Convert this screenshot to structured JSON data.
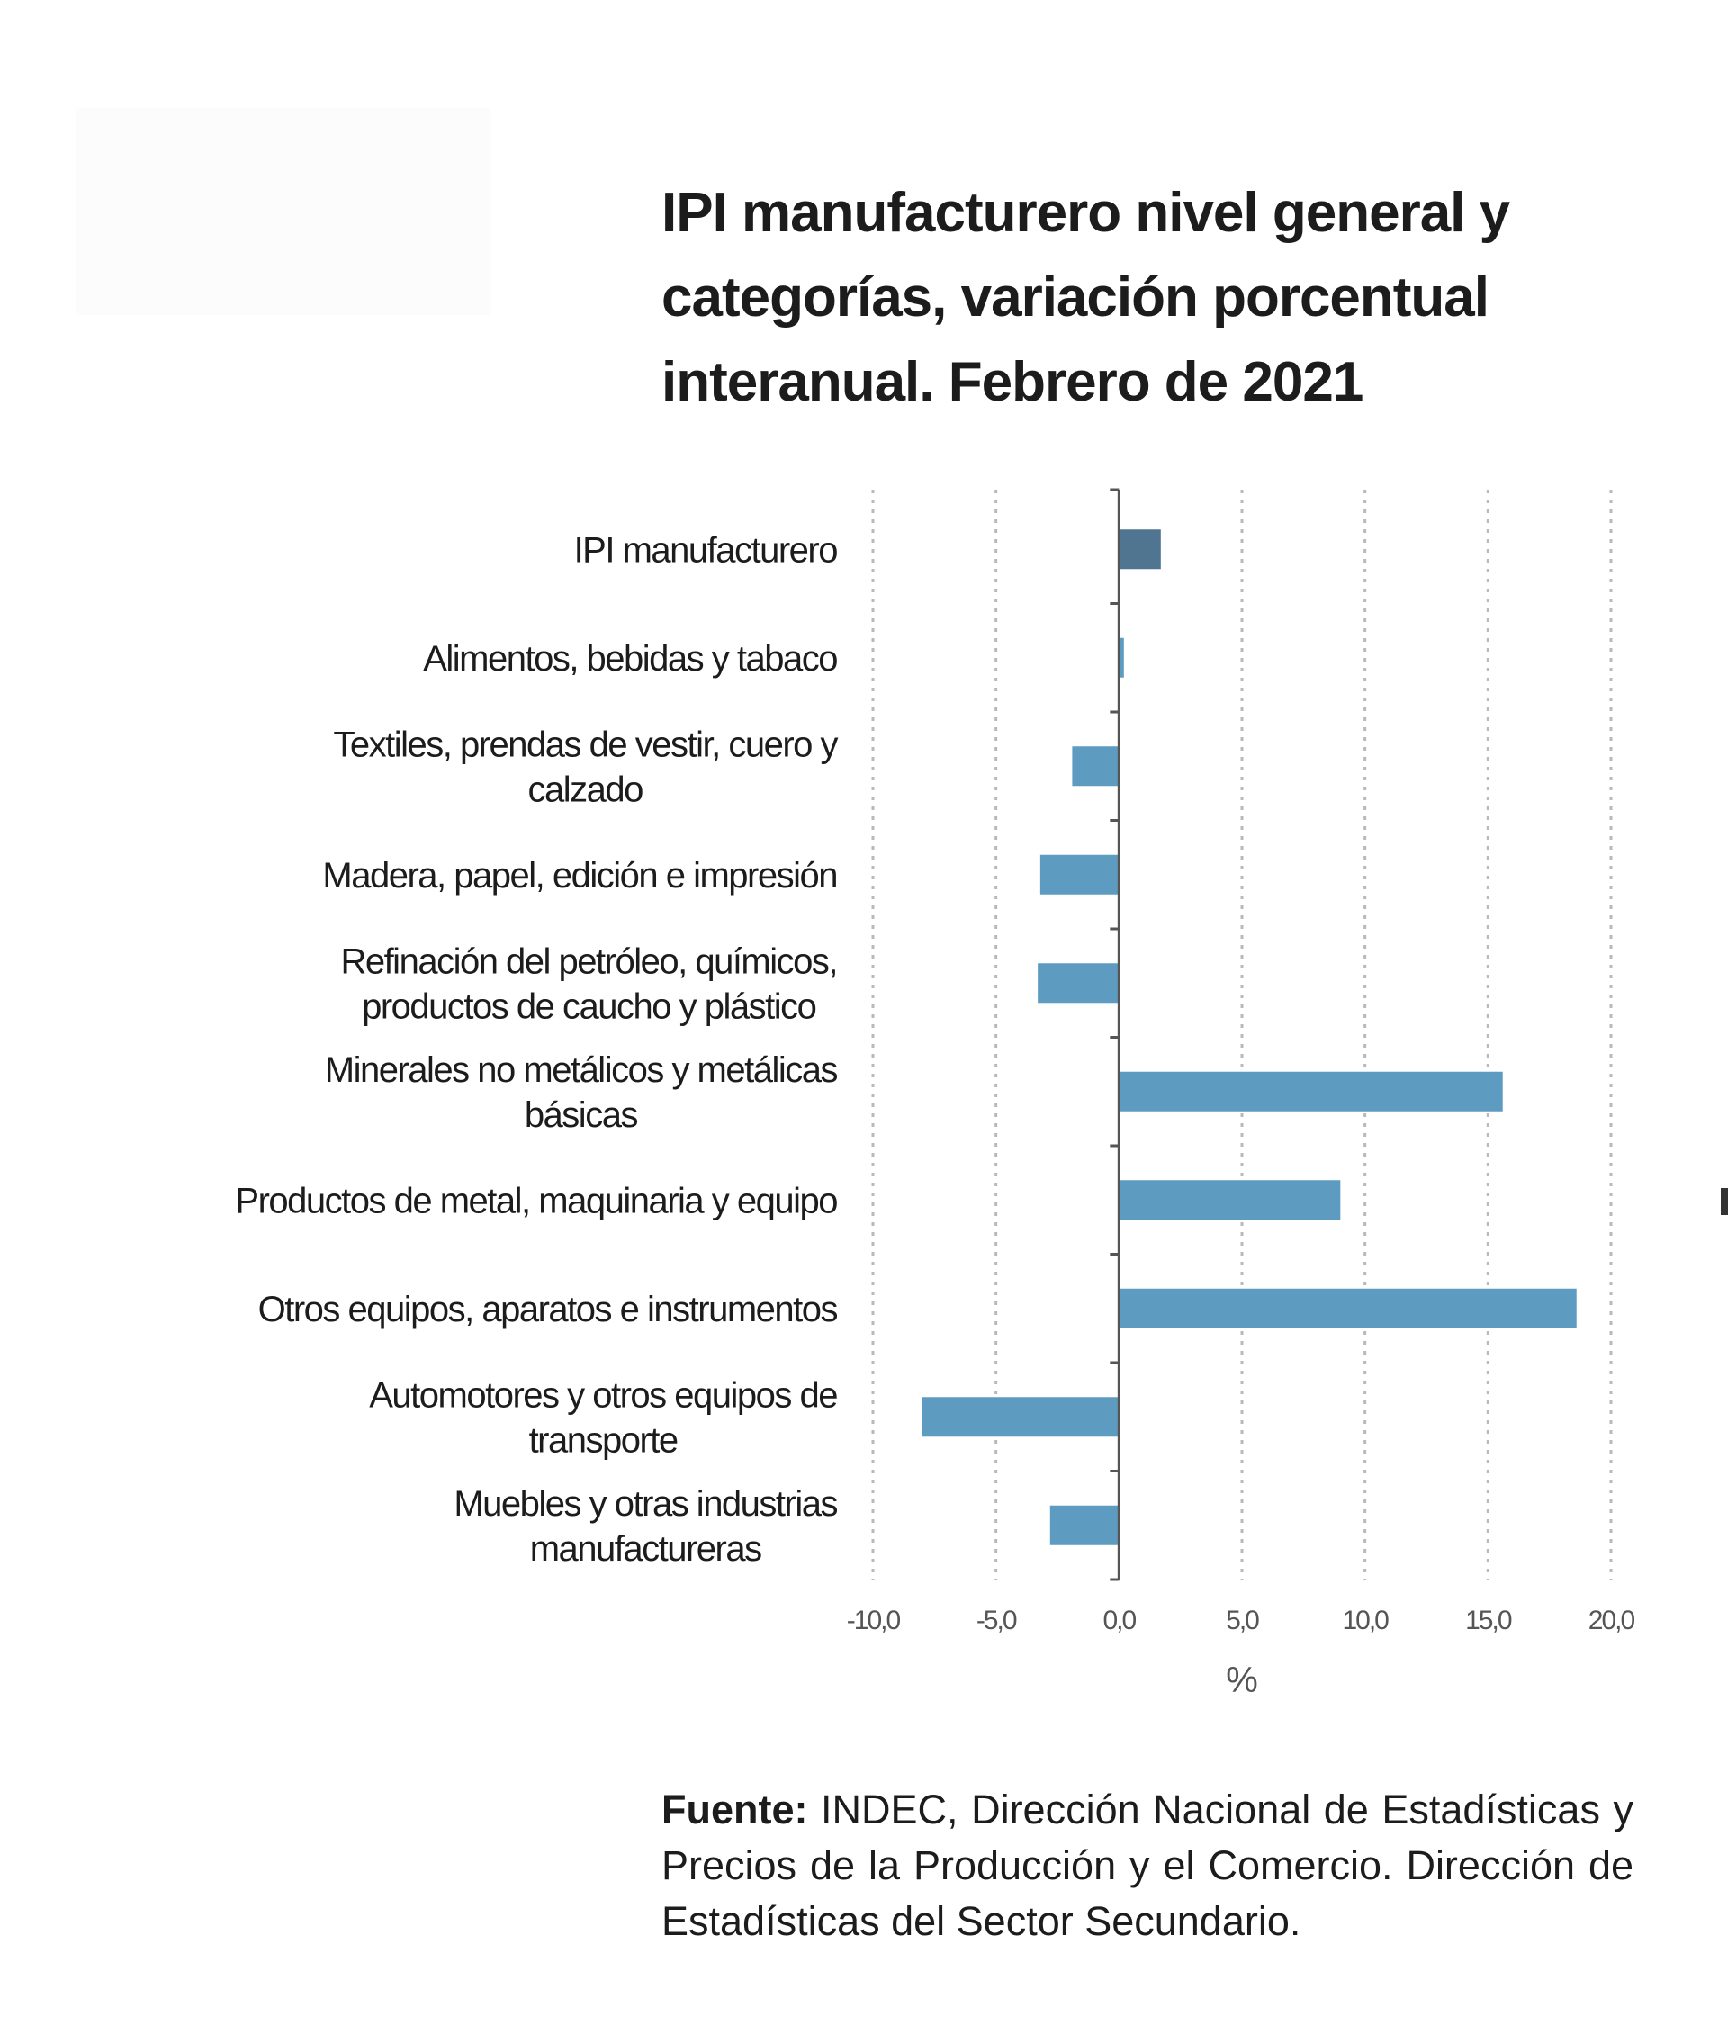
{
  "title_lines": [
    "IPI manufacturero nivel general y",
    "categorías, variación porcentual",
    "interanual. Febrero de 2021"
  ],
  "source": {
    "label": "Fuente:",
    "text": "INDEC, Dirección Nacional de Estadísticas y Precios de la Producción y el Comercio. Dirección de Estadísticas del Sector Secundario."
  },
  "colors": {
    "highlight_bar": "#4f7591",
    "bar": "#5e9bc1",
    "grid": "#b9b9b9",
    "axis": "#555555",
    "text": "#1c1c1c",
    "tick_text": "#555555"
  },
  "chart_data": {
    "type": "bar",
    "orientation": "horizontal",
    "categories": [
      [
        "IPI manufacturero"
      ],
      [
        "Alimentos, bebidas y tabaco"
      ],
      [
        "Textiles, prendas de vestir, cuero y",
        "calzado"
      ],
      [
        "Madera, papel, edición e impresión"
      ],
      [
        "Refinación del petróleo, químicos,",
        "productos de caucho y plástico"
      ],
      [
        "Minerales no metálicos y metálicas",
        "básicas"
      ],
      [
        "Productos de metal, maquinaria y equipo"
      ],
      [
        "Otros equipos, aparatos e instrumentos"
      ],
      [
        "Automotores y otros equipos de",
        "transporte"
      ],
      [
        "Muebles y otras industrias",
        "manufactureras"
      ]
    ],
    "values": [
      1.7,
      0.2,
      -1.9,
      -3.2,
      -3.3,
      15.6,
      9.0,
      18.6,
      -8.0,
      -2.8
    ],
    "highlight_index": 0,
    "xlim": [
      -10,
      20
    ],
    "xticks": [
      -10,
      -5,
      0,
      5,
      10,
      15,
      20
    ],
    "xtick_labels": [
      "-10,0",
      "-5,0",
      "0,0",
      "5,0",
      "10,0",
      "15,0",
      "20,0"
    ],
    "xlabel": "%",
    "grid": true
  }
}
